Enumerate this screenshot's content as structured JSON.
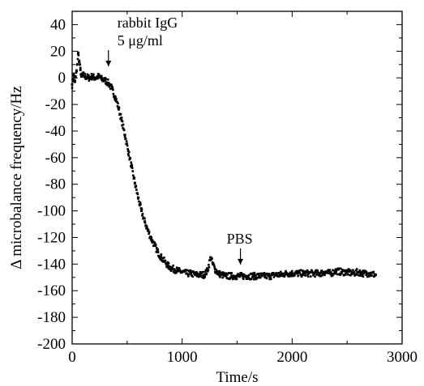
{
  "chart_data": {
    "type": "scatter",
    "title": "",
    "xlabel": "Time/s",
    "ylabel": "Δ microbalance frequency/Hz",
    "xlim": [
      0,
      3000
    ],
    "ylim": [
      -200,
      50
    ],
    "x_ticks": [
      0,
      1000,
      2000,
      3000
    ],
    "y_ticks": [
      -200,
      -180,
      -160,
      -140,
      -120,
      -100,
      -80,
      -60,
      -40,
      -20,
      0,
      20,
      40
    ],
    "x_tick_labels": [
      "0",
      "1000",
      "2000",
      "3000"
    ],
    "y_tick_labels": [
      "-200",
      "-180",
      "-160",
      "-140",
      "-120",
      "-100",
      "-80",
      "-60",
      "-40",
      "-20",
      "0",
      "20",
      "40"
    ],
    "grid": false,
    "colors": {
      "marker": "#000000",
      "axis": "#000000"
    },
    "series": [
      {
        "x": [
          0,
          15,
          25,
          40,
          55,
          65,
          75,
          85,
          100,
          120,
          150,
          180,
          210,
          240,
          270,
          300,
          330,
          360,
          390,
          420,
          450,
          480,
          510,
          540,
          570,
          600,
          630,
          660,
          690,
          720,
          750,
          780,
          810,
          840,
          870,
          900,
          930,
          960,
          1000,
          1040,
          1080,
          1120,
          1160,
          1200,
          1230,
          1260,
          1280,
          1300,
          1330,
          1360,
          1400,
          1450,
          1500,
          1550,
          1600,
          1650,
          1700,
          1750,
          1800,
          1850,
          1900,
          1950,
          2000,
          2050,
          2100,
          2150,
          2200,
          2250,
          2300,
          2350,
          2400,
          2450,
          2500,
          2550,
          2600,
          2650,
          2700,
          2760
        ],
        "y": [
          -5,
          2,
          -3,
          5,
          18,
          12,
          6,
          1,
          2,
          1,
          0,
          1,
          0,
          1,
          -1,
          -2,
          -4,
          -8,
          -14,
          -22,
          -32,
          -43,
          -55,
          -67,
          -79,
          -90,
          -100,
          -108,
          -115,
          -121,
          -126,
          -131,
          -135,
          -138,
          -141,
          -143,
          -144,
          -145,
          -146,
          -147,
          -147,
          -148,
          -148,
          -148,
          -145,
          -135,
          -140,
          -144,
          -147,
          -148,
          -149,
          -149,
          -149,
          -149,
          -149,
          -149,
          -149,
          -149,
          -149,
          -148,
          -148,
          -147,
          -147,
          -147,
          -147,
          -147,
          -147,
          -147,
          -146,
          -147,
          -145,
          -146,
          -146,
          -147,
          -146,
          -147,
          -147,
          -148
        ]
      }
    ],
    "annotations": [
      {
        "lines": [
          "rabbit IgG",
          "5 μg/ml"
        ],
        "arrow_x": 330,
        "arrow_y": 5
      },
      {
        "lines": [
          "PBS"
        ],
        "arrow_x": 1530,
        "arrow_y": -144
      }
    ]
  }
}
